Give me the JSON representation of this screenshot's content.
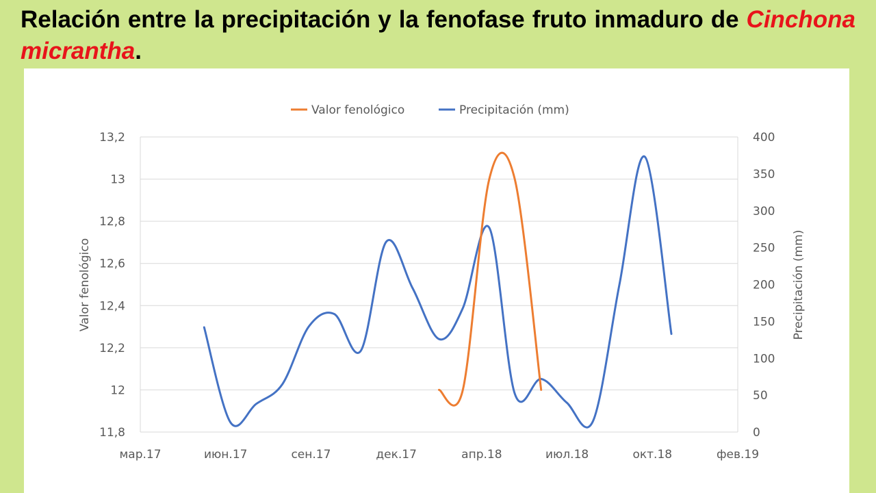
{
  "slide": {
    "title_part1": "Relación entre la precipitación y la fenofase fruto inmaduro de ",
    "title_species": "Cinchona micrantha",
    "title_end": "."
  },
  "colors": {
    "background": "#cfe68e",
    "panel": "#ffffff",
    "phenology": "#ed7d31",
    "precipitation": "#4472c4",
    "species_text": "#e8141b"
  },
  "chart_data": {
    "type": "line",
    "legend_position": "top",
    "grid": true,
    "x_ticks": [
      "мар.17",
      "июн.17",
      "сен.17",
      "дек.17",
      "апр.18",
      "июл.18",
      "окт.18",
      "фев.19"
    ],
    "y_left_label": "Valor fenológico",
    "y_left_ticks": [
      "11,8",
      "12",
      "12,2",
      "12,4",
      "12,6",
      "12,8",
      "13",
      "13,2"
    ],
    "y_left_range": [
      11.8,
      13.2
    ],
    "y_right_label": "Precipitación (mm)",
    "y_right_ticks": [
      "0",
      "50",
      "100",
      "150",
      "200",
      "250",
      "300",
      "350",
      "400"
    ],
    "y_right_range": [
      0,
      400
    ],
    "series": [
      {
        "name": "Valor fenológico",
        "axis": "left",
        "color": "#ed7d31",
        "points": [
          {
            "x": "2018-02-15",
            "y": 12.0
          },
          {
            "x": "2018-03-15",
            "y": 12.0
          },
          {
            "x": "2018-04-15",
            "y": 13.0
          },
          {
            "x": "2018-05-15",
            "y": 13.0
          },
          {
            "x": "2018-06-15",
            "y": 12.0
          }
        ]
      },
      {
        "name": "Precipitación (mm)",
        "axis": "right",
        "color": "#4472c4",
        "points": [
          {
            "x": "2017-05-15",
            "y": 142
          },
          {
            "x": "2017-06-15",
            "y": 13
          },
          {
            "x": "2017-07-15",
            "y": 38
          },
          {
            "x": "2017-08-15",
            "y": 65
          },
          {
            "x": "2017-09-15",
            "y": 143
          },
          {
            "x": "2017-10-15",
            "y": 160
          },
          {
            "x": "2017-11-15",
            "y": 110
          },
          {
            "x": "2017-12-15",
            "y": 258
          },
          {
            "x": "2018-01-15",
            "y": 195
          },
          {
            "x": "2018-02-15",
            "y": 126
          },
          {
            "x": "2018-03-15",
            "y": 168
          },
          {
            "x": "2018-04-15",
            "y": 277
          },
          {
            "x": "2018-05-15",
            "y": 52
          },
          {
            "x": "2018-06-15",
            "y": 72
          },
          {
            "x": "2018-07-15",
            "y": 40
          },
          {
            "x": "2018-08-15",
            "y": 15
          },
          {
            "x": "2018-09-15",
            "y": 200
          },
          {
            "x": "2018-10-15",
            "y": 373
          },
          {
            "x": "2018-11-15",
            "y": 133
          }
        ]
      }
    ]
  }
}
